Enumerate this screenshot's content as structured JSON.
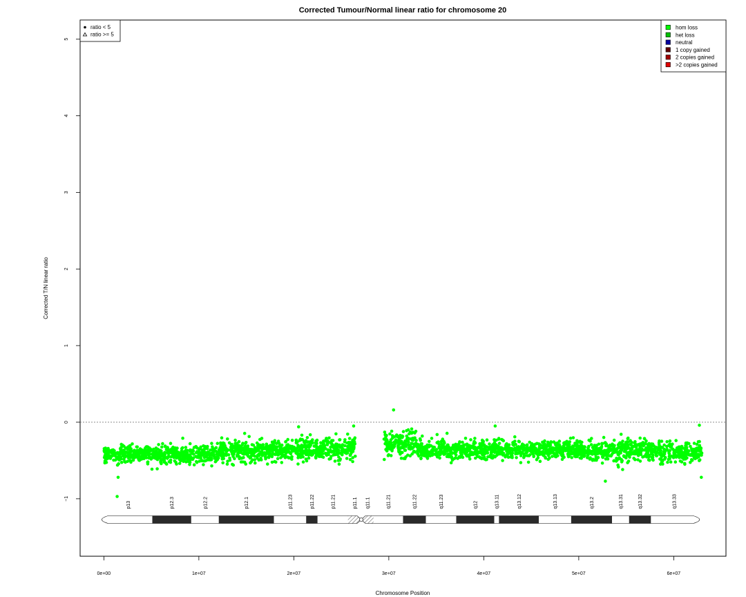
{
  "chart_data": {
    "type": "scatter",
    "title": "Corrected Tumour/Normal linear ratio for chromosome  20",
    "xlabel": "Chromosome Position",
    "ylabel": "Corrected T/N linear ratio",
    "xlim": [
      -2500000,
      65500000
    ],
    "ylim": [
      -1.75,
      5.25
    ],
    "x_ticks": [
      0,
      10000000,
      20000000,
      30000000,
      40000000,
      50000000,
      60000000
    ],
    "x_tick_labels": [
      "0e+00",
      "1e+07",
      "2e+07",
      "3e+07",
      "4e+07",
      "5e+07",
      "6e+07"
    ],
    "y_ticks": [
      -1,
      0,
      1,
      2,
      3,
      4,
      5
    ],
    "y_tick_labels": [
      "−1",
      "0",
      "1",
      "2",
      "3",
      "4",
      "5"
    ],
    "reference_line_y": 0,
    "grid": false,
    "point_color": "#00ff00",
    "series": [
      {
        "segments": [
          {
            "x_start": 0,
            "x_end": 2500000,
            "y_mean": -0.42,
            "noise": 0.06
          },
          {
            "x_start": 2500000,
            "x_end": 12000000,
            "y_mean": -0.42,
            "noise": 0.06
          },
          {
            "x_start": 12000000,
            "x_end": 19000000,
            "y_mean": -0.38,
            "noise": 0.07
          },
          {
            "x_start": 19000000,
            "x_end": 26500000,
            "y_mean": -0.36,
            "noise": 0.07
          },
          {
            "x_start": 29500000,
            "x_end": 33000000,
            "y_mean": -0.28,
            "noise": 0.08
          },
          {
            "x_start": 33000000,
            "x_end": 50000000,
            "y_mean": -0.36,
            "noise": 0.06
          },
          {
            "x_start": 50000000,
            "x_end": 63000000,
            "y_mean": -0.38,
            "noise": 0.07
          }
        ],
        "outliers": [
          {
            "x": 1400000,
            "y": -0.97
          },
          {
            "x": 1500000,
            "y": -0.72
          },
          {
            "x": 30500000,
            "y": 0.16
          },
          {
            "x": 52800000,
            "y": -0.77
          },
          {
            "x": 62900000,
            "y": -0.72
          },
          {
            "x": 20500000,
            "y": -0.06
          },
          {
            "x": 41200000,
            "y": -0.05
          },
          {
            "x": 26300000,
            "y": -0.05
          },
          {
            "x": 62700000,
            "y": -0.04
          }
        ]
      }
    ],
    "legend_shape": {
      "placement": "top-left",
      "entries": [
        {
          "label": "ratio < 5",
          "marker": "circle"
        },
        {
          "label": "ratio >= 5",
          "marker": "triangle"
        }
      ]
    },
    "legend_state": {
      "placement": "top-right",
      "entries": [
        {
          "label": "hom loss",
          "color": "#00ff00"
        },
        {
          "label": "het loss",
          "color": "#00c000"
        },
        {
          "label": "neutral",
          "color": "#0000a0"
        },
        {
          "label": "1 copy gained",
          "color": "#600000"
        },
        {
          "label": "2 copies gained",
          "color": "#a00000"
        },
        {
          "label": ">2 copies gained",
          "color": "#e00000"
        }
      ]
    },
    "ideogram": {
      "bands": [
        {
          "name": "p13",
          "start": 0,
          "end": 5100000,
          "stain": "white"
        },
        {
          "name": "p12.3",
          "start": 5100000,
          "end": 9200000,
          "stain": "black"
        },
        {
          "name": "p12.2",
          "start": 9200000,
          "end": 12100000,
          "stain": "white"
        },
        {
          "name": "p12.1",
          "start": 12100000,
          "end": 17900000,
          "stain": "black"
        },
        {
          "name": "p11.23",
          "start": 17900000,
          "end": 21300000,
          "stain": "white"
        },
        {
          "name": "p11.22",
          "start": 21300000,
          "end": 22500000,
          "stain": "black"
        },
        {
          "name": "p11.21",
          "start": 22500000,
          "end": 25700000,
          "stain": "white"
        },
        {
          "name": "p11.1",
          "start": 25700000,
          "end": 27100000,
          "stain": "hatch"
        },
        {
          "name": "q11.1",
          "start": 27100000,
          "end": 28400000,
          "stain": "hatch"
        },
        {
          "name": "q11.21",
          "start": 28400000,
          "end": 31500000,
          "stain": "white"
        },
        {
          "name": "q11.22",
          "start": 31500000,
          "end": 33900000,
          "stain": "black"
        },
        {
          "name": "q11.23",
          "start": 33900000,
          "end": 37100000,
          "stain": "white"
        },
        {
          "name": "q12",
          "start": 37100000,
          "end": 41100000,
          "stain": "black"
        },
        {
          "name": "q13.11",
          "start": 41100000,
          "end": 41600000,
          "stain": "white"
        },
        {
          "name": "q13.12",
          "start": 41600000,
          "end": 45800000,
          "stain": "black"
        },
        {
          "name": "q13.13",
          "start": 45800000,
          "end": 49200000,
          "stain": "white"
        },
        {
          "name": "q13.2",
          "start": 49200000,
          "end": 53500000,
          "stain": "black"
        },
        {
          "name": "q13.31",
          "start": 53500000,
          "end": 55300000,
          "stain": "white"
        },
        {
          "name": "q13.32",
          "start": 55300000,
          "end": 57600000,
          "stain": "black"
        },
        {
          "name": "q13.33",
          "start": 57600000,
          "end": 62500000,
          "stain": "white"
        }
      ],
      "centromere": 27100000
    }
  }
}
